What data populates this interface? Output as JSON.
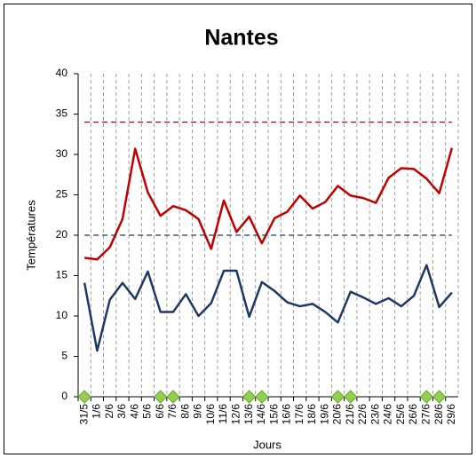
{
  "chart_data": {
    "type": "line",
    "title": "Nantes",
    "x_label": "Jours",
    "y_label": "Températures",
    "categories": [
      "31/5",
      "1/6",
      "2/6",
      "3/6",
      "4/6",
      "5/6",
      "6/6",
      "7/6",
      "8/6",
      "9/6",
      "10/6",
      "11/6",
      "12/6",
      "13/6",
      "14/6",
      "15/6",
      "16/6",
      "17/6",
      "18/6",
      "19/6",
      "20/6",
      "21/6",
      "22/6",
      "23/6",
      "24/6",
      "25/6",
      "26/6",
      "27/6",
      "28/6",
      "29/6"
    ],
    "series": [
      {
        "color": "#c00000",
        "values": [
          17.2,
          17.0,
          18.5,
          22.0,
          30.7,
          25.3,
          22.4,
          23.6,
          23.1,
          22.0,
          18.3,
          24.3,
          20.4,
          22.3,
          19.0,
          22.1,
          22.9,
          24.9,
          23.3,
          24.1,
          26.1,
          24.9,
          24.6,
          24.0,
          27.1,
          28.3,
          28.2,
          27.0,
          25.2,
          30.8
        ]
      },
      {
        "color": "#1f3864",
        "values": [
          14.1,
          5.7,
          12.0,
          14.1,
          12.1,
          15.5,
          10.5,
          10.5,
          12.7,
          10.0,
          11.6,
          15.6,
          15.6,
          9.9,
          14.2,
          13.1,
          11.7,
          11.2,
          11.5,
          10.5,
          9.2,
          13.0,
          12.3,
          11.5,
          12.2,
          11.2,
          12.5,
          16.3,
          11.1,
          12.9
        ]
      },
      {
        "color": "#c00000",
        "dashed": true,
        "values": [
          34,
          34,
          34,
          34,
          34,
          34,
          34,
          34,
          34,
          34,
          34,
          34,
          34,
          34,
          34,
          34,
          34,
          34,
          34,
          34,
          34,
          34,
          34,
          34,
          34,
          34,
          34,
          34,
          34,
          34
        ]
      },
      {
        "color": "#1f3864",
        "dashed": true,
        "values": [
          20,
          20,
          20,
          20,
          20,
          20,
          20,
          20,
          20,
          20,
          20,
          20,
          20,
          20,
          20,
          20,
          20,
          20,
          20,
          20,
          20,
          20,
          20,
          20,
          20,
          20,
          20,
          20,
          20,
          20
        ]
      },
      {
        "color": "#92d050",
        "marker": "diamond",
        "values": [
          0,
          null,
          null,
          null,
          null,
          null,
          0,
          0,
          null,
          null,
          null,
          null,
          null,
          0,
          0,
          null,
          null,
          null,
          null,
          null,
          0,
          0,
          null,
          null,
          null,
          null,
          null,
          0,
          0,
          null
        ]
      }
    ],
    "ylim": [
      0,
      40
    ],
    "yticks": [
      0,
      5,
      10,
      15,
      20,
      25,
      30,
      35,
      40
    ],
    "x_grid": true
  }
}
